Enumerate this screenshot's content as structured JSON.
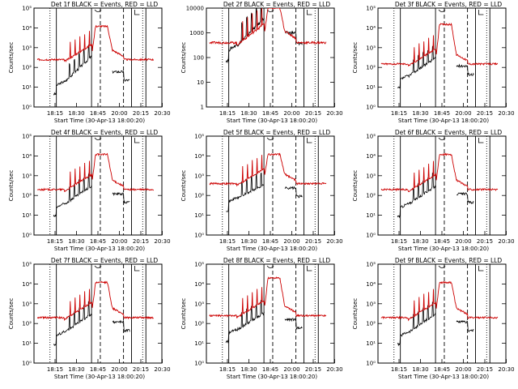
{
  "figure": {
    "xlabel": "Start Time (30-Apr-13 18:00:20)",
    "ylabel": "Counts/sec",
    "x_ticks": [
      "18:15",
      "18:30",
      "18:45",
      "20:00",
      "20:15",
      "20:30"
    ]
  },
  "chart_data": [
    {
      "type": "line",
      "title": "Det 1f BLACK = Events, RED = LLD",
      "yscale": "log",
      "ylim": [
        1,
        100000
      ],
      "yticks": [
        "10⁰",
        "10¹",
        "10²",
        "10³",
        "10⁴",
        "10⁵"
      ],
      "series": [
        {
          "name": "Events",
          "color": "#000000",
          "peak": 1000,
          "base": 15
        },
        {
          "name": "LLD",
          "color": "#cc0000",
          "peak": 12000,
          "base": 250
        }
      ]
    },
    {
      "type": "line",
      "title": "Det 2f BLACK = Events, RED = LLD",
      "yscale": "log",
      "ylim": [
        1,
        10000
      ],
      "yticks": [
        "1",
        "10",
        "100",
        "1000",
        "10000"
      ],
      "series": [
        {
          "name": "Events",
          "color": "#000000",
          "peak": 10000,
          "base": 250
        },
        {
          "name": "LLD",
          "color": "#cc0000",
          "peak": 10000,
          "base": 400
        }
      ]
    },
    {
      "type": "line",
      "title": "Det 3f BLACK = Events, RED = LLD",
      "yscale": "log",
      "ylim": [
        1,
        100000
      ],
      "yticks": [
        "10⁰",
        "10¹",
        "10²",
        "10³",
        "10⁴",
        "10⁵"
      ],
      "series": [
        {
          "name": "Events",
          "color": "#000000",
          "peak": 800,
          "base": 30
        },
        {
          "name": "LLD",
          "color": "#cc0000",
          "peak": 15000,
          "base": 150
        }
      ]
    },
    {
      "type": "line",
      "title": "Det 4f BLACK = Events, RED = LLD",
      "yscale": "log",
      "ylim": [
        1,
        100000
      ],
      "yticks": [
        "10⁰",
        "10¹",
        "10²",
        "10³",
        "10⁴",
        "10⁵"
      ],
      "series": [
        {
          "name": "Events",
          "color": "#000000",
          "peak": 800,
          "base": 30
        },
        {
          "name": "LLD",
          "color": "#cc0000",
          "peak": 12000,
          "base": 200
        }
      ]
    },
    {
      "type": "line",
      "title": "Det 5f BLACK = Events, RED = LLD",
      "yscale": "log",
      "ylim": [
        1,
        100000
      ],
      "yticks": [
        "10⁰",
        "10¹",
        "10²",
        "10³",
        "10⁴",
        "10⁵"
      ],
      "series": [
        {
          "name": "Events",
          "color": "#000000",
          "peak": 900,
          "base": 60
        },
        {
          "name": "LLD",
          "color": "#cc0000",
          "peak": 12000,
          "base": 400
        }
      ]
    },
    {
      "type": "line",
      "title": "Det 6f BLACK = Events, RED = LLD",
      "yscale": "log",
      "ylim": [
        1,
        100000
      ],
      "yticks": [
        "10⁰",
        "10¹",
        "10²",
        "10³",
        "10⁴",
        "10⁵"
      ],
      "series": [
        {
          "name": "Events",
          "color": "#000000",
          "peak": 800,
          "base": 30
        },
        {
          "name": "LLD",
          "color": "#cc0000",
          "peak": 12000,
          "base": 200
        }
      ]
    },
    {
      "type": "line",
      "title": "Det 7f BLACK = Events, RED = LLD",
      "yscale": "log",
      "ylim": [
        1,
        100000
      ],
      "yticks": [
        "10⁰",
        "10¹",
        "10²",
        "10³",
        "10⁴",
        "10⁵"
      ],
      "series": [
        {
          "name": "Events",
          "color": "#000000",
          "peak": 800,
          "base": 30
        },
        {
          "name": "LLD",
          "color": "#cc0000",
          "peak": 12000,
          "base": 200
        }
      ]
    },
    {
      "type": "line",
      "title": "Det 8f BLACK = Events, RED = LLD",
      "yscale": "log",
      "ylim": [
        1,
        100000
      ],
      "yticks": [
        "10⁰",
        "10¹",
        "10²",
        "10³",
        "10⁴",
        "10⁵"
      ],
      "series": [
        {
          "name": "Events",
          "color": "#000000",
          "peak": 900,
          "base": 40
        },
        {
          "name": "LLD",
          "color": "#cc0000",
          "peak": 20000,
          "base": 250
        }
      ]
    },
    {
      "type": "line",
      "title": "Det 9f BLACK = Events, RED = LLD",
      "yscale": "log",
      "ylim": [
        1,
        100000
      ],
      "yticks": [
        "10⁰",
        "10¹",
        "10²",
        "10³",
        "10⁴",
        "10⁵"
      ],
      "series": [
        {
          "name": "Events",
          "color": "#000000",
          "peak": 800,
          "base": 30
        },
        {
          "name": "LLD",
          "color": "#cc0000",
          "peak": 12000,
          "base": 200
        }
      ]
    }
  ]
}
